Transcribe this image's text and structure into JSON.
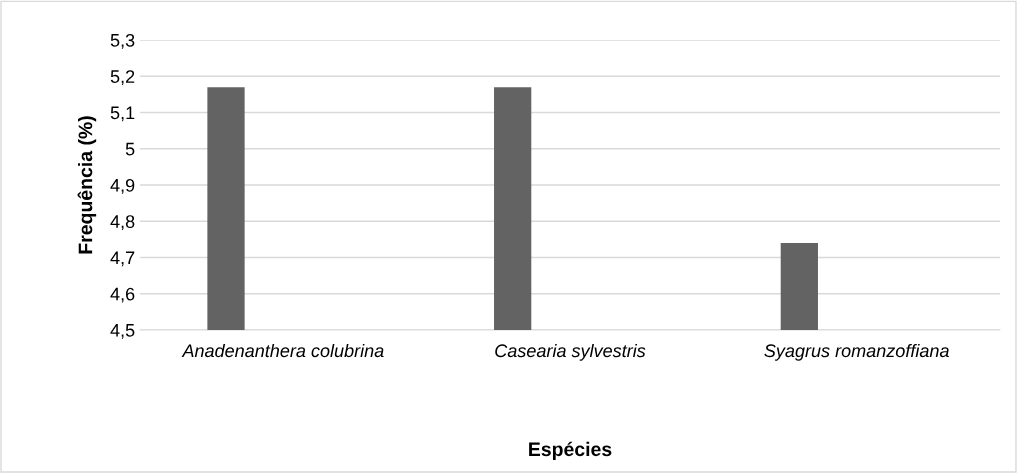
{
  "chart_data": {
    "type": "bar",
    "xlabel": "Espécies",
    "ylabel": "Frequência (%)",
    "categories": [
      "Anadenanthera colubrina",
      "Casearia sylvestris",
      "Syagrus romanzoffiana"
    ],
    "values": [
      5.17,
      5.17,
      4.74
    ],
    "color": "#636363",
    "ylim": [
      4.5,
      5.3
    ],
    "yticks": [
      {
        "value": 4.5,
        "label": "4,5"
      },
      {
        "value": 4.6,
        "label": "4,6"
      },
      {
        "value": 4.7,
        "label": "4,7"
      },
      {
        "value": 4.8,
        "label": "4,8"
      },
      {
        "value": 4.9,
        "label": "4,9"
      },
      5,
      {
        "value": 5.1,
        "label": "5,1"
      },
      {
        "value": 5.2,
        "label": "5,2"
      },
      {
        "value": 5.3,
        "label": "5,3"
      }
    ],
    "grid": "y"
  }
}
